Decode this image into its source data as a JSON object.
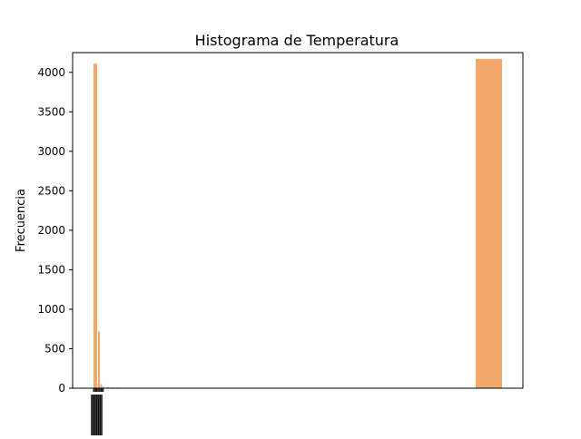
{
  "chart_data": {
    "type": "bar",
    "title": "Histograma de Temperatura",
    "xlabel": "",
    "ylabel": "Frecuencia",
    "ylim": [
      0,
      4250
    ],
    "y_ticks": [
      0,
      500,
      1000,
      1500,
      2000,
      2500,
      3000,
      3500,
      4000
    ],
    "grid": false,
    "legend": "none",
    "colors": {
      "bar": "#f4a96c",
      "axis": "#000000",
      "background": "#ffffff"
    },
    "bins": [
      {
        "x": 0.0,
        "value": 4110
      },
      {
        "x": 0.5,
        "value": 60
      },
      {
        "x": 1.0,
        "value": 720
      },
      {
        "x": 1.5,
        "value": 50
      },
      {
        "x": 2.0,
        "value": 20
      },
      {
        "x": 3.0,
        "value": 15
      },
      {
        "x": 4.0,
        "value": 10
      },
      {
        "x": 5.0,
        "value": 8
      },
      {
        "x": 6.0,
        "value": 6
      },
      {
        "x": 7.0,
        "value": 4
      },
      {
        "x": 100.0,
        "value": 4170
      }
    ],
    "x_tick_labels_note": "overlapping illegible labels"
  }
}
